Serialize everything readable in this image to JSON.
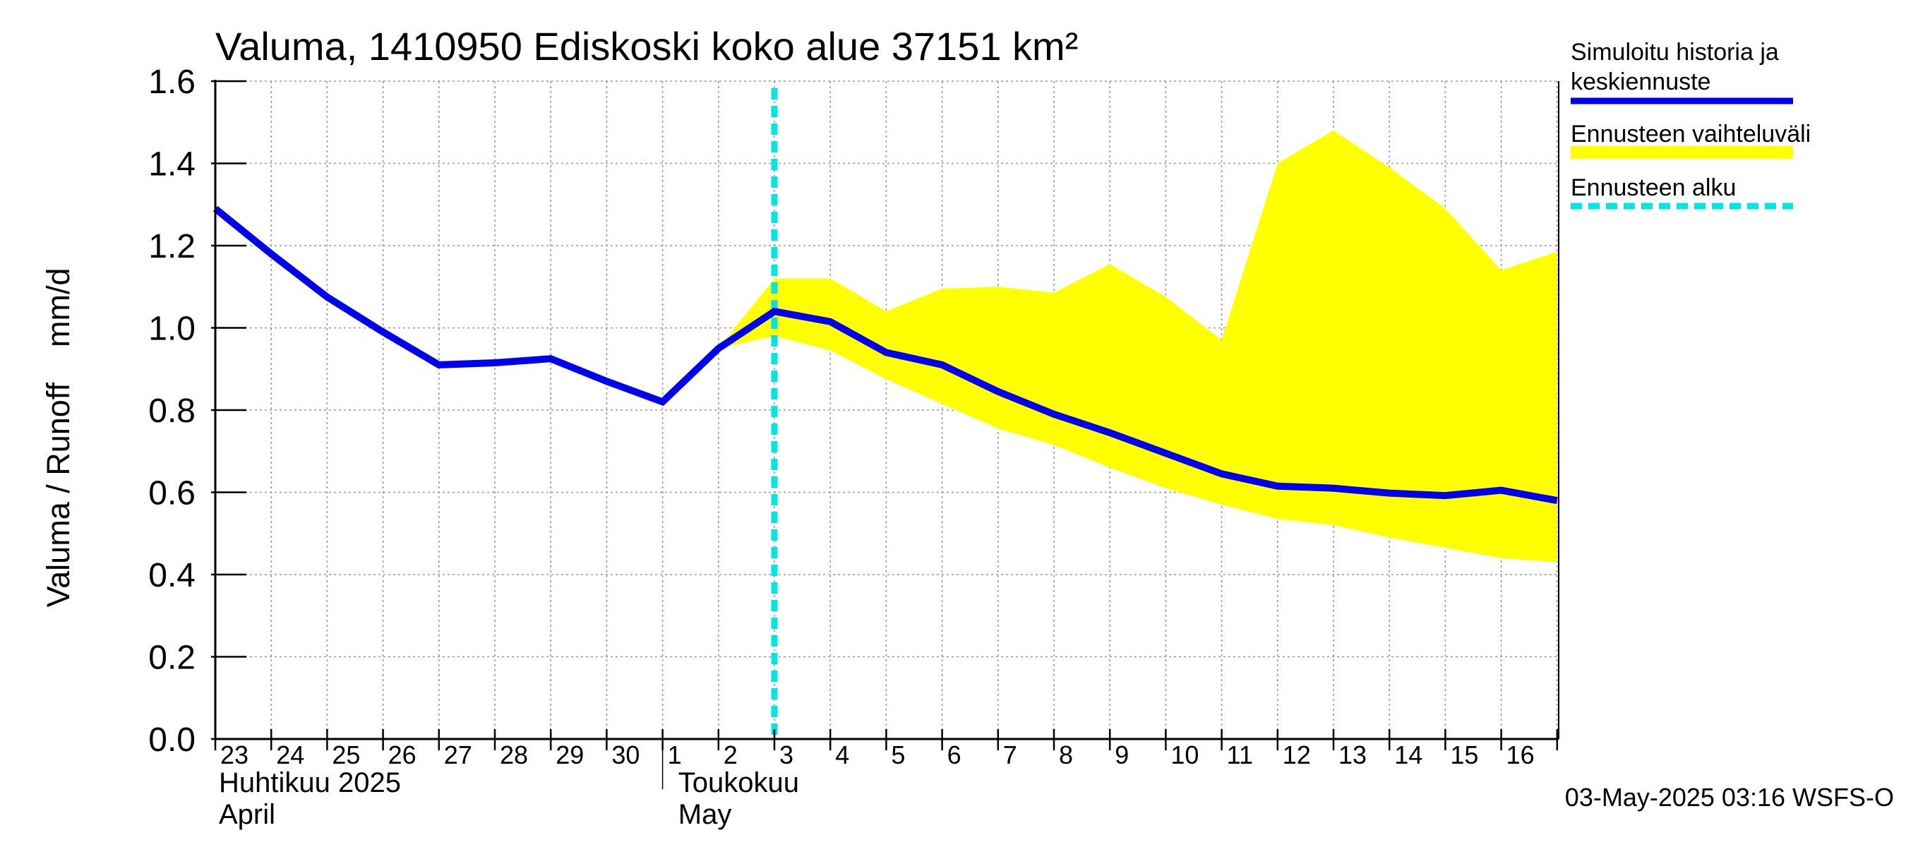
{
  "chart_data": {
    "type": "line",
    "title": "Valuma, 1410950 Ediskoski koko alue 37151 km²",
    "ylabel": "Valuma / Runoff    mm/d",
    "ylim": [
      0.0,
      1.6
    ],
    "yticks": [
      "0.0",
      "0.2",
      "0.4",
      "0.6",
      "0.8",
      "1.0",
      "1.2",
      "1.4",
      "1.6"
    ],
    "x_tick_labels": [
      "23",
      "24",
      "25",
      "26",
      "27",
      "28",
      "29",
      "30",
      "1",
      "2",
      "3",
      "4",
      "5",
      "6",
      "7",
      "8",
      "9",
      "10",
      "11",
      "12",
      "13",
      "14",
      "15",
      "16"
    ],
    "month_labels": [
      {
        "line1": "Huhtikuu  2025",
        "line2": "April"
      },
      {
        "line1": "Toukokuu",
        "line2": "May"
      }
    ],
    "grid": true,
    "forecast_start": "2025-05-03",
    "series": [
      {
        "name": "Simuloitu historia ja keskiennuste",
        "color": "#0000ee",
        "x": [
          "2025-04-23",
          "2025-04-24",
          "2025-04-25",
          "2025-04-26",
          "2025-04-27",
          "2025-04-28",
          "2025-04-29",
          "2025-04-30",
          "2025-05-01",
          "2025-05-02",
          "2025-05-03",
          "2025-05-04",
          "2025-05-05",
          "2025-05-06",
          "2025-05-07",
          "2025-05-08",
          "2025-05-09",
          "2025-05-10",
          "2025-05-11",
          "2025-05-12",
          "2025-05-13",
          "2025-05-14",
          "2025-05-15",
          "2025-05-16",
          "2025-05-17"
        ],
        "values": [
          1.29,
          1.18,
          1.075,
          0.99,
          0.91,
          0.915,
          0.925,
          0.87,
          0.82,
          0.95,
          1.04,
          1.015,
          0.94,
          0.91,
          0.845,
          0.79,
          0.745,
          0.695,
          0.645,
          0.615,
          0.61,
          0.598,
          0.592,
          0.605,
          0.58
        ]
      },
      {
        "name": "Ennusteen vaihteluväli",
        "color": "#ffff00",
        "x": [
          "2025-05-02",
          "2025-05-03",
          "2025-05-04",
          "2025-05-05",
          "2025-05-06",
          "2025-05-07",
          "2025-05-08",
          "2025-05-09",
          "2025-05-10",
          "2025-05-11",
          "2025-05-12",
          "2025-05-13",
          "2025-05-14",
          "2025-05-15",
          "2025-05-16",
          "2025-05-17"
        ],
        "upper": [
          0.95,
          1.12,
          1.12,
          1.04,
          1.095,
          1.1,
          1.085,
          1.155,
          1.075,
          0.97,
          1.4,
          1.48,
          1.39,
          1.29,
          1.14,
          1.185
        ],
        "lower": [
          0.95,
          0.98,
          0.945,
          0.875,
          0.815,
          0.755,
          0.715,
          0.66,
          0.61,
          0.57,
          0.535,
          0.52,
          0.49,
          0.465,
          0.44,
          0.43
        ]
      },
      {
        "name": "Ennusteen alku",
        "color": "#00e5e5"
      }
    ],
    "legend_position": "right",
    "footer": "03-May-2025 03:16 WSFS-O"
  }
}
